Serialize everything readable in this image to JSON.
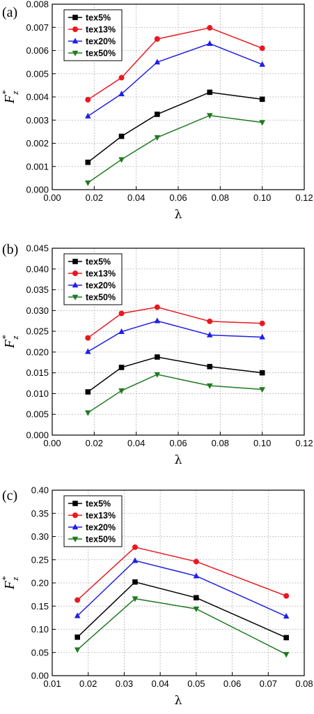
{
  "chart_data": [
    {
      "panel_label": "(a)",
      "type": "line",
      "xlabel": "λ",
      "ylabel": {
        "main": "F",
        "sup": "*",
        "sub": "z"
      },
      "xlim": [
        0.0,
        0.12
      ],
      "ylim": [
        0.0,
        0.008
      ],
      "xticks": [
        "0.00",
        "0.02",
        "0.04",
        "0.06",
        "0.08",
        "0.10",
        "0.12"
      ],
      "yticks": [
        "0.000",
        "0.001",
        "0.002",
        "0.003",
        "0.004",
        "0.005",
        "0.006",
        "0.007",
        "0.008"
      ],
      "grid": true,
      "legend_position": "top-left",
      "x": [
        0.017,
        0.033,
        0.05,
        0.075,
        0.1
      ],
      "series": [
        {
          "name": "tex5%",
          "color": "#000000",
          "marker": "square",
          "values": [
            0.00118,
            0.0023,
            0.00325,
            0.0042,
            0.0039
          ]
        },
        {
          "name": "tex13%",
          "color": "#e8191f",
          "marker": "circle",
          "values": [
            0.00388,
            0.00483,
            0.0065,
            0.00698,
            0.0061
          ]
        },
        {
          "name": "tex20%",
          "color": "#1f1fe8",
          "marker": "triangle-up",
          "values": [
            0.00317,
            0.00413,
            0.0055,
            0.0063,
            0.0054
          ]
        },
        {
          "name": "tex50%",
          "color": "#1f7a1f",
          "marker": "triangle-down",
          "values": [
            0.0003,
            0.0013,
            0.00225,
            0.0032,
            0.0029
          ]
        }
      ]
    },
    {
      "panel_label": "(b)",
      "type": "line",
      "xlabel": "λ",
      "ylabel": {
        "main": "F",
        "sup": "*",
        "sub": "z"
      },
      "xlim": [
        0.0,
        0.12
      ],
      "ylim": [
        0.0,
        0.045
      ],
      "xticks": [
        "0.00",
        "0.02",
        "0.04",
        "0.06",
        "0.08",
        "0.10",
        "0.12"
      ],
      "yticks": [
        "0.000",
        "0.005",
        "0.010",
        "0.015",
        "0.020",
        "0.025",
        "0.030",
        "0.035",
        "0.040",
        "0.045"
      ],
      "grid": true,
      "legend_position": "top-left",
      "x": [
        0.017,
        0.033,
        0.05,
        0.075,
        0.1
      ],
      "series": [
        {
          "name": "tex5%",
          "color": "#000000",
          "marker": "square",
          "values": [
            0.0104,
            0.0163,
            0.0188,
            0.0165,
            0.015
          ]
        },
        {
          "name": "tex13%",
          "color": "#e8191f",
          "marker": "circle",
          "values": [
            0.0234,
            0.0293,
            0.0308,
            0.0274,
            0.0269
          ]
        },
        {
          "name": "tex20%",
          "color": "#1f1fe8",
          "marker": "triangle-up",
          "values": [
            0.0201,
            0.0249,
            0.0275,
            0.0241,
            0.0236
          ]
        },
        {
          "name": "tex50%",
          "color": "#1f7a1f",
          "marker": "triangle-down",
          "values": [
            0.0054,
            0.0107,
            0.0146,
            0.0119,
            0.011
          ]
        }
      ]
    },
    {
      "panel_label": "(c)",
      "type": "line",
      "xlabel": "λ",
      "ylabel": {
        "main": "F",
        "sup": "*",
        "sub": "z"
      },
      "xlim": [
        0.01,
        0.08
      ],
      "ylim": [
        0.0,
        0.4
      ],
      "xticks": [
        "0.01",
        "0.02",
        "0.03",
        "0.04",
        "0.05",
        "0.06",
        "0.07",
        "0.08"
      ],
      "yticks": [
        "0.00",
        "0.05",
        "0.10",
        "0.15",
        "0.20",
        "0.25",
        "0.30",
        "0.35",
        "0.40"
      ],
      "grid": true,
      "legend_position": "top-left",
      "x": [
        0.017,
        0.033,
        0.05,
        0.075
      ],
      "series": [
        {
          "name": "tex5%",
          "color": "#000000",
          "marker": "square",
          "values": [
            0.083,
            0.202,
            0.168,
            0.082
          ]
        },
        {
          "name": "tex13%",
          "color": "#e8191f",
          "marker": "circle",
          "values": [
            0.163,
            0.277,
            0.246,
            0.172
          ]
        },
        {
          "name": "tex20%",
          "color": "#1f1fe8",
          "marker": "triangle-up",
          "values": [
            0.129,
            0.248,
            0.215,
            0.128
          ]
        },
        {
          "name": "tex50%",
          "color": "#1f7a1f",
          "marker": "triangle-down",
          "values": [
            0.056,
            0.166,
            0.144,
            0.046
          ]
        }
      ]
    }
  ]
}
